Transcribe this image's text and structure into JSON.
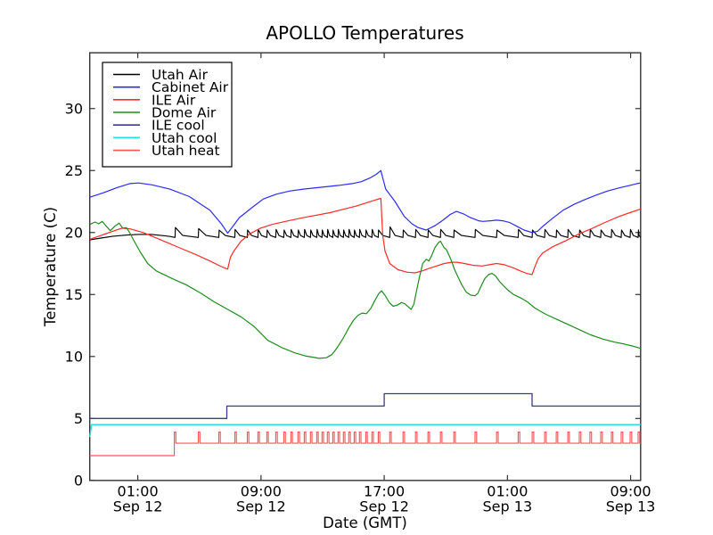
{
  "chart_data": {
    "type": "line",
    "title": "APOLLO Temperatures",
    "xlabel": "Date (GMT)",
    "ylabel": "Temperature (C)",
    "x_unit": "hours since Sep 12 00:00 GMT",
    "x_range_hours": [
      -2.12,
      33.65
    ],
    "y_range": [
      0,
      34.5
    ],
    "grid": false,
    "legend_position": "upper left",
    "x_ticks": [
      {
        "t": 1,
        "time": "01:00",
        "date": "Sep 12"
      },
      {
        "t": 9,
        "time": "09:00",
        "date": "Sep 12"
      },
      {
        "t": 17,
        "time": "17:00",
        "date": "Sep 12"
      },
      {
        "t": 25,
        "time": "01:00",
        "date": "Sep 13"
      },
      {
        "t": 33,
        "time": "09:00",
        "date": "Sep 13"
      }
    ],
    "y_ticks": [
      0,
      5,
      10,
      15,
      20,
      25,
      30
    ],
    "heater_cycle_hours": [
      3.42,
      4.93,
      6.26,
      7.3,
      8.11,
      8.8,
      9.38,
      9.96,
      10.48,
      10.94,
      11.4,
      11.81,
      12.21,
      12.62,
      12.96,
      13.31,
      13.66,
      14.0,
      14.35,
      14.7,
      15.05,
      15.39,
      15.8,
      16.2,
      16.61,
      17.36,
      18.22,
      19.03,
      19.84,
      20.65,
      21.52,
      22.9,
      24.3,
      25.7,
      26.61,
      27.42,
      28.17,
      28.92,
      29.67,
      30.36,
      31.06,
      31.75,
      32.39,
      32.97,
      33.49
    ],
    "series": [
      {
        "name": "Utah Air",
        "color": "#000000",
        "width": 1.15,
        "generator": "sawtooth",
        "base": 19.6,
        "tooth": 0.6,
        "tooth_overrides": {
          "0": 0.8,
          "1": 0.72,
          "25": 0.85
        },
        "base_points": [
          [
            -2.12,
            19.4
          ],
          [
            -1.4,
            19.55
          ],
          [
            -0.6,
            19.7
          ],
          [
            0.3,
            19.8
          ],
          [
            1.0,
            19.85
          ],
          [
            1.9,
            19.85
          ],
          [
            2.6,
            19.75
          ],
          [
            3.1,
            19.68
          ],
          [
            3.42,
            19.6
          ]
        ]
      },
      {
        "name": "Cabinet Air",
        "color": "#2a2aff",
        "width": 1.2,
        "points": [
          [
            -2.12,
            22.85
          ],
          [
            -1.25,
            23.2
          ],
          [
            -0.39,
            23.6
          ],
          [
            0.48,
            23.95
          ],
          [
            1.06,
            24.0
          ],
          [
            1.92,
            23.85
          ],
          [
            3.08,
            23.5
          ],
          [
            4.35,
            22.9
          ],
          [
            5.68,
            21.8
          ],
          [
            6.43,
            20.7
          ],
          [
            6.84,
            19.95
          ],
          [
            7.24,
            20.6
          ],
          [
            7.59,
            21.2
          ],
          [
            8.4,
            22.0
          ],
          [
            9.15,
            22.7
          ],
          [
            10.01,
            23.1
          ],
          [
            10.88,
            23.35
          ],
          [
            11.75,
            23.5
          ],
          [
            12.9,
            23.65
          ],
          [
            14.06,
            23.8
          ],
          [
            14.93,
            23.95
          ],
          [
            15.5,
            24.1
          ],
          [
            16.08,
            24.4
          ],
          [
            16.49,
            24.7
          ],
          [
            16.78,
            25.0
          ],
          [
            16.95,
            24.2
          ],
          [
            17.1,
            23.5
          ],
          [
            17.7,
            22.5
          ],
          [
            18.3,
            21.3
          ],
          [
            18.8,
            20.7
          ],
          [
            19.2,
            20.4
          ],
          [
            19.72,
            20.2
          ],
          [
            20.3,
            20.55
          ],
          [
            20.82,
            21.0
          ],
          [
            21.28,
            21.45
          ],
          [
            21.69,
            21.7
          ],
          [
            22.15,
            21.5
          ],
          [
            22.61,
            21.2
          ],
          [
            23.13,
            20.95
          ],
          [
            23.4,
            20.9
          ],
          [
            23.9,
            20.95
          ],
          [
            24.3,
            21.0
          ],
          [
            24.7,
            20.95
          ],
          [
            25.15,
            20.8
          ],
          [
            25.62,
            20.5
          ],
          [
            26.08,
            20.2
          ],
          [
            26.6,
            20.0
          ],
          [
            26.95,
            20.1
          ],
          [
            27.35,
            20.55
          ],
          [
            27.93,
            21.15
          ],
          [
            28.62,
            21.8
          ],
          [
            29.37,
            22.3
          ],
          [
            30.12,
            22.7
          ],
          [
            30.82,
            23.05
          ],
          [
            31.51,
            23.35
          ],
          [
            32.26,
            23.6
          ],
          [
            32.95,
            23.8
          ],
          [
            33.42,
            23.95
          ],
          [
            33.65,
            24.0
          ]
        ]
      },
      {
        "name": "ILE Air",
        "color": "#ff2b2b",
        "width": 1.2,
        "points": [
          [
            -2.12,
            19.45
          ],
          [
            -1.54,
            19.7
          ],
          [
            -0.97,
            19.95
          ],
          [
            -0.39,
            20.2
          ],
          [
            -0.04,
            20.35
          ],
          [
            0.48,
            20.3
          ],
          [
            1.35,
            20.0
          ],
          [
            2.5,
            19.4
          ],
          [
            3.66,
            18.8
          ],
          [
            4.81,
            18.2
          ],
          [
            5.68,
            17.7
          ],
          [
            6.43,
            17.25
          ],
          [
            6.84,
            17.05
          ],
          [
            7.01,
            18.0
          ],
          [
            7.24,
            18.5
          ],
          [
            7.7,
            19.3
          ],
          [
            8.28,
            19.9
          ],
          [
            8.97,
            20.35
          ],
          [
            9.72,
            20.65
          ],
          [
            10.59,
            20.9
          ],
          [
            11.75,
            21.2
          ],
          [
            13.48,
            21.6
          ],
          [
            15.22,
            22.15
          ],
          [
            16.37,
            22.6
          ],
          [
            16.78,
            22.75
          ],
          [
            16.9,
            19.8
          ],
          [
            17.05,
            18.5
          ],
          [
            17.36,
            17.5
          ],
          [
            17.9,
            17.0
          ],
          [
            18.5,
            16.8
          ],
          [
            19.0,
            16.75
          ],
          [
            19.45,
            16.9
          ],
          [
            19.9,
            17.1
          ],
          [
            20.4,
            17.3
          ],
          [
            20.9,
            17.5
          ],
          [
            21.4,
            17.6
          ],
          [
            21.75,
            17.6
          ],
          [
            22.21,
            17.5
          ],
          [
            22.79,
            17.35
          ],
          [
            23.37,
            17.3
          ],
          [
            23.83,
            17.4
          ],
          [
            24.29,
            17.5
          ],
          [
            24.81,
            17.4
          ],
          [
            25.39,
            17.15
          ],
          [
            25.85,
            16.9
          ],
          [
            26.25,
            16.7
          ],
          [
            26.6,
            16.6
          ],
          [
            26.77,
            17.2
          ],
          [
            27.0,
            17.9
          ],
          [
            27.29,
            18.35
          ],
          [
            27.93,
            18.85
          ],
          [
            28.8,
            19.35
          ],
          [
            29.67,
            19.9
          ],
          [
            30.53,
            20.35
          ],
          [
            31.4,
            20.85
          ],
          [
            32.26,
            21.3
          ],
          [
            32.95,
            21.6
          ],
          [
            33.65,
            21.9
          ]
        ]
      },
      {
        "name": "Dome Air",
        "color": "#1e8c1e",
        "width": 1.2,
        "points": [
          [
            -2.12,
            20.65
          ],
          [
            -1.77,
            20.85
          ],
          [
            -1.54,
            20.7
          ],
          [
            -1.31,
            20.9
          ],
          [
            -1.08,
            20.55
          ],
          [
            -0.79,
            20.15
          ],
          [
            -0.5,
            20.5
          ],
          [
            -0.21,
            20.75
          ],
          [
            0.02,
            20.35
          ],
          [
            0.25,
            20.4
          ],
          [
            0.42,
            20.1
          ],
          [
            0.77,
            19.3
          ],
          [
            1.17,
            18.4
          ],
          [
            1.64,
            17.5
          ],
          [
            2.21,
            16.9
          ],
          [
            2.79,
            16.55
          ],
          [
            3.37,
            16.2
          ],
          [
            4.12,
            15.8
          ],
          [
            5.1,
            15.1
          ],
          [
            5.97,
            14.4
          ],
          [
            6.84,
            13.8
          ],
          [
            7.7,
            13.2
          ],
          [
            8.57,
            12.4
          ],
          [
            9.44,
            11.3
          ],
          [
            10.3,
            10.75
          ],
          [
            11.17,
            10.3
          ],
          [
            11.86,
            10.05
          ],
          [
            12.33,
            9.95
          ],
          [
            12.79,
            9.85
          ],
          [
            13.25,
            9.9
          ],
          [
            13.6,
            10.15
          ],
          [
            13.94,
            10.7
          ],
          [
            14.35,
            11.5
          ],
          [
            14.7,
            12.3
          ],
          [
            14.99,
            12.9
          ],
          [
            15.28,
            13.3
          ],
          [
            15.56,
            13.5
          ],
          [
            15.85,
            13.45
          ],
          [
            16.14,
            13.9
          ],
          [
            16.43,
            14.6
          ],
          [
            16.66,
            15.1
          ],
          [
            16.83,
            15.3
          ],
          [
            17.07,
            14.9
          ],
          [
            17.36,
            14.3
          ],
          [
            17.59,
            14.05
          ],
          [
            17.87,
            14.15
          ],
          [
            18.11,
            14.35
          ],
          [
            18.34,
            14.25
          ],
          [
            18.57,
            14.0
          ],
          [
            18.75,
            13.8
          ],
          [
            18.92,
            14.2
          ],
          [
            19.1,
            15.3
          ],
          [
            19.27,
            16.3
          ],
          [
            19.5,
            17.5
          ],
          [
            19.73,
            17.85
          ],
          [
            19.9,
            17.7
          ],
          [
            20.07,
            18.1
          ],
          [
            20.3,
            18.8
          ],
          [
            20.53,
            19.2
          ],
          [
            20.65,
            19.3
          ],
          [
            20.88,
            18.8
          ],
          [
            21.05,
            18.6
          ],
          [
            21.34,
            17.8
          ],
          [
            21.57,
            17.0
          ],
          [
            21.8,
            16.4
          ],
          [
            22.03,
            15.8
          ],
          [
            22.32,
            15.2
          ],
          [
            22.62,
            14.95
          ],
          [
            22.9,
            14.9
          ],
          [
            23.08,
            15.1
          ],
          [
            23.3,
            15.7
          ],
          [
            23.54,
            16.3
          ],
          [
            23.77,
            16.6
          ],
          [
            24.0,
            16.7
          ],
          [
            24.23,
            16.5
          ],
          [
            24.46,
            16.1
          ],
          [
            24.75,
            15.7
          ],
          [
            25.04,
            15.35
          ],
          [
            25.4,
            15.0
          ],
          [
            25.9,
            14.7
          ],
          [
            26.3,
            14.4
          ],
          [
            26.8,
            13.9
          ],
          [
            27.5,
            13.4
          ],
          [
            28.2,
            13.0
          ],
          [
            28.9,
            12.6
          ],
          [
            29.7,
            12.15
          ],
          [
            30.4,
            11.75
          ],
          [
            31.2,
            11.4
          ],
          [
            32.0,
            11.15
          ],
          [
            32.6,
            11.0
          ],
          [
            33.1,
            10.85
          ],
          [
            33.65,
            10.65
          ]
        ]
      },
      {
        "name": "ILE cool",
        "color": "#3b3b8f",
        "width": 1.3,
        "points": [
          [
            -2.12,
            5.0
          ],
          [
            6.78,
            5.0
          ],
          [
            6.78,
            6.0
          ],
          [
            17.0,
            6.0
          ],
          [
            17.0,
            7.0
          ],
          [
            26.6,
            7.0
          ],
          [
            26.6,
            6.0
          ],
          [
            33.65,
            6.0
          ]
        ]
      },
      {
        "name": "Utah cool",
        "color": "#2ddede",
        "width": 1.5,
        "points": [
          [
            -2.12,
            3.5
          ],
          [
            -2.0,
            4.5
          ],
          [
            33.65,
            4.5
          ]
        ]
      },
      {
        "name": "Utah heat",
        "color": "#ff5555",
        "width": 1.15,
        "generator": "spikes",
        "step_time": 3.37,
        "low": 2.0,
        "base": 3.0,
        "peak": 3.9
      }
    ]
  }
}
